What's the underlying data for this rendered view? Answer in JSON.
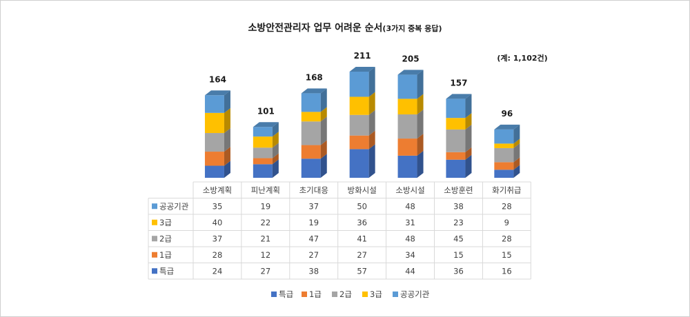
{
  "chart_data": {
    "type": "bar",
    "stacked": true,
    "title_main": "소방안전관리자 업무 어려운 순서",
    "title_sub": "(3가지 중복 응답)",
    "note": "(계: 1,102건)",
    "categories": [
      "소방계획",
      "피난계획",
      "초기대응",
      "방화시설",
      "소방시설",
      "소방훈련",
      "화기취급"
    ],
    "totals": [
      164,
      101,
      168,
      211,
      205,
      157,
      96
    ],
    "series": [
      {
        "name": "특급",
        "color": "#4472c4",
        "values": [
          24,
          27,
          38,
          57,
          44,
          36,
          16
        ]
      },
      {
        "name": "1급",
        "color": "#ed7d31",
        "values": [
          28,
          12,
          27,
          27,
          34,
          15,
          15
        ]
      },
      {
        "name": "2급",
        "color": "#a5a5a5",
        "values": [
          37,
          21,
          47,
          41,
          48,
          45,
          28
        ]
      },
      {
        "name": "3급",
        "color": "#ffc000",
        "values": [
          40,
          22,
          19,
          36,
          31,
          23,
          9
        ]
      },
      {
        "name": "공공기관",
        "color": "#5b9bd5",
        "values": [
          35,
          19,
          37,
          50,
          48,
          38,
          28
        ]
      }
    ],
    "ylim": [
      0,
      211
    ],
    "legend_position": "bottom",
    "data_table": true
  }
}
